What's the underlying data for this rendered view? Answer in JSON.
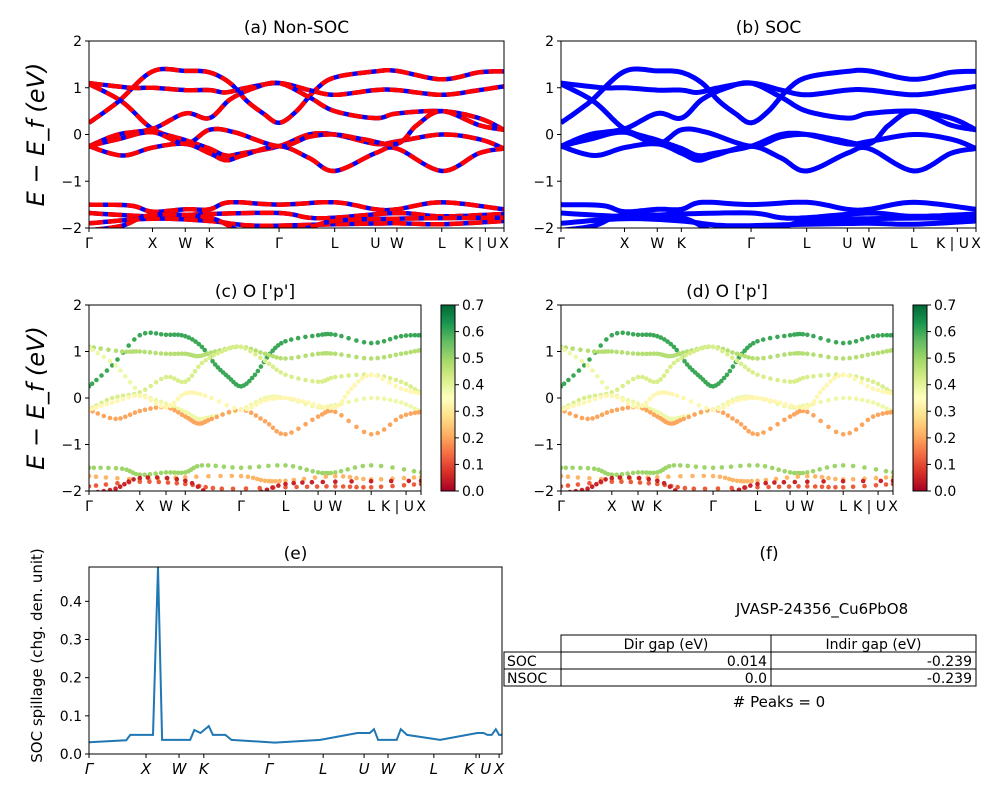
{
  "chart_data": [
    {
      "id": "a",
      "type": "line",
      "title": "(a) Non-SOC",
      "ylabel": "E − E_f (eV)",
      "ylim": [
        -2,
        2
      ],
      "yticks": [
        2,
        1,
        0,
        -1,
        -2
      ],
      "style": "dashed-red-blue",
      "colors": {
        "primary": "#ff0000",
        "secondary": "#0000ff"
      }
    },
    {
      "id": "b",
      "type": "line",
      "title": "(b) SOC",
      "ylim": [
        -2,
        2
      ],
      "yticks": [
        2,
        1,
        0,
        -1,
        -2
      ],
      "style": "solid-blue",
      "colors": {
        "primary": "#0000ff"
      }
    },
    {
      "id": "c",
      "type": "scatter",
      "title": "(c)  O ['p']",
      "ylabel": "E − E_f (eV)",
      "ylim": [
        -2,
        2
      ],
      "yticks": [
        2,
        1,
        0,
        -1,
        -2
      ],
      "colorbar": {
        "cmap": "RdYlGn",
        "range": [
          0,
          0.7
        ],
        "ticks": [
          "0.0",
          "0.1",
          "0.2",
          "0.3",
          "0.4",
          "0.5",
          "0.6",
          "0.7"
        ]
      }
    },
    {
      "id": "d",
      "type": "scatter",
      "title": "(d) O ['p']",
      "ylim": [
        -2,
        2
      ],
      "yticks": [
        2,
        1,
        0,
        -1,
        -2
      ],
      "colorbar": {
        "cmap": "RdYlGn",
        "range": [
          0,
          0.7
        ],
        "ticks": [
          "0.0",
          "0.1",
          "0.2",
          "0.3",
          "0.4",
          "0.5",
          "0.6",
          "0.7"
        ]
      }
    },
    {
      "id": "e",
      "type": "line",
      "title": "(e)",
      "ylabel": "SOC spillage (chg. den. unit)",
      "ylim": [
        0,
        0.49
      ],
      "yticks": [
        "0.0",
        "0.1",
        "0.2",
        "0.3",
        "0.4"
      ],
      "color": "#1f77b4",
      "kpath_labels": [
        "Γ",
        "X",
        "W",
        "K",
        "Γ",
        "L",
        "U",
        "W",
        "L",
        "K",
        "U",
        "X"
      ],
      "kpath_positions": [
        0,
        0.138,
        0.218,
        0.278,
        0.436,
        0.567,
        0.666,
        0.724,
        0.835,
        0.937,
        0.945,
        0.993
      ],
      "x": [
        0,
        0.09,
        0.1,
        0.155,
        0.167,
        0.177,
        0.245,
        0.255,
        0.27,
        0.29,
        0.3,
        0.33,
        0.345,
        0.45,
        0.56,
        0.65,
        0.68,
        0.69,
        0.7,
        0.745,
        0.755,
        0.77,
        0.85,
        0.94,
        0.955,
        0.965,
        0.975,
        0.985,
        0.993,
        1.0
      ],
      "y": [
        0.031,
        0.036,
        0.05,
        0.05,
        0.49,
        0.037,
        0.037,
        0.063,
        0.055,
        0.073,
        0.05,
        0.05,
        0.037,
        0.03,
        0.037,
        0.055,
        0.055,
        0.065,
        0.037,
        0.037,
        0.065,
        0.05,
        0.037,
        0.055,
        0.055,
        0.05,
        0.05,
        0.065,
        0.05,
        0.05
      ]
    },
    {
      "id": "f",
      "type": "table",
      "title": "(f)",
      "material": "JVASP-24356_Cu6PbO8",
      "columns": [
        "Dir gap (eV)",
        "Indir gap (eV)"
      ],
      "rows": [
        {
          "label": "SOC",
          "values": [
            "0.014",
            "-0.239"
          ]
        },
        {
          "label": "NSOC",
          "values": [
            "0.0",
            "-0.239"
          ]
        }
      ],
      "footer": "# Peaks = 0"
    }
  ],
  "kpath": {
    "labels": [
      "Γ",
      "X",
      "W",
      "K",
      "Γ",
      "L",
      "U",
      "W",
      "L",
      "K | U",
      "X"
    ],
    "positions": [
      0,
      0.153,
      0.232,
      0.29,
      0.458,
      0.592,
      0.69,
      0.742,
      0.85,
      0.955,
      1.0
    ]
  },
  "bands": [
    {
      "w": 0.6,
      "pts": [
        [
          0,
          0.25
        ],
        [
          0.07,
          0.7
        ],
        [
          0.153,
          1.35
        ],
        [
          0.232,
          1.36
        ],
        [
          0.29,
          1.33
        ],
        [
          0.34,
          1.1
        ],
        [
          0.38,
          0.72
        ],
        [
          0.42,
          0.45
        ],
        [
          0.458,
          0.25
        ],
        [
          0.5,
          0.5
        ],
        [
          0.545,
          0.95
        ],
        [
          0.592,
          1.22
        ],
        [
          0.69,
          1.35
        ],
        [
          0.742,
          1.36
        ],
        [
          0.85,
          1.18
        ],
        [
          0.94,
          1.33
        ],
        [
          1,
          1.35
        ]
      ]
    },
    {
      "w": 0.47,
      "pts": [
        [
          0,
          1.1
        ],
        [
          0.1,
          1.0
        ],
        [
          0.153,
          1.0
        ],
        [
          0.232,
          0.95
        ],
        [
          0.29,
          0.95
        ],
        [
          0.33,
          0.9
        ],
        [
          0.38,
          1.0
        ],
        [
          0.458,
          1.1
        ],
        [
          0.53,
          0.95
        ],
        [
          0.592,
          0.85
        ],
        [
          0.69,
          0.95
        ],
        [
          0.742,
          0.95
        ],
        [
          0.85,
          0.85
        ],
        [
          0.94,
          0.95
        ],
        [
          1,
          1.03
        ]
      ]
    },
    {
      "w": 0.38,
      "pts": [
        [
          0,
          1.08
        ],
        [
          0.08,
          0.7
        ],
        [
          0.153,
          0.12
        ],
        [
          0.232,
          -0.12
        ],
        [
          0.29,
          -0.3
        ],
        [
          0.33,
          -0.45
        ],
        [
          0.37,
          -0.4
        ],
        [
          0.458,
          -0.25
        ],
        [
          0.53,
          0.0
        ],
        [
          0.592,
          0.0
        ],
        [
          0.69,
          -0.2
        ],
        [
          0.742,
          -0.15
        ],
        [
          0.85,
          0.0
        ],
        [
          0.94,
          -0.1
        ],
        [
          1,
          -0.3
        ]
      ]
    },
    {
      "w": 0.42,
      "pts": [
        [
          0,
          -0.25
        ],
        [
          0.07,
          0.0
        ],
        [
          0.153,
          0.12
        ],
        [
          0.232,
          0.45
        ],
        [
          0.29,
          0.35
        ],
        [
          0.34,
          0.75
        ],
        [
          0.4,
          1.0
        ],
        [
          0.458,
          1.1
        ],
        [
          0.53,
          0.8
        ],
        [
          0.592,
          0.5
        ],
        [
          0.69,
          0.35
        ],
        [
          0.742,
          0.45
        ],
        [
          0.85,
          0.5
        ],
        [
          0.94,
          0.35
        ],
        [
          1,
          0.1
        ]
      ]
    },
    {
      "w": 0.2,
      "pts": [
        [
          0,
          -0.25
        ],
        [
          0.08,
          -0.45
        ],
        [
          0.153,
          -0.28
        ],
        [
          0.232,
          -0.2
        ],
        [
          0.29,
          -0.4
        ],
        [
          0.33,
          -0.55
        ],
        [
          0.37,
          -0.45
        ],
        [
          0.458,
          -0.25
        ],
        [
          0.53,
          -0.5
        ],
        [
          0.592,
          -0.78
        ],
        [
          0.69,
          -0.4
        ],
        [
          0.742,
          -0.3
        ],
        [
          0.85,
          -0.78
        ],
        [
          0.94,
          -0.4
        ],
        [
          1,
          -0.3
        ]
      ]
    },
    {
      "w": 0.33,
      "pts": [
        [
          0,
          -0.25
        ],
        [
          0.07,
          -0.1
        ],
        [
          0.153,
          0.05
        ],
        [
          0.232,
          -0.2
        ],
        [
          0.29,
          0.1
        ],
        [
          0.35,
          0.05
        ],
        [
          0.458,
          -0.25
        ],
        [
          0.53,
          -0.05
        ],
        [
          0.592,
          0.0
        ],
        [
          0.66,
          -0.1
        ],
        [
          0.742,
          -0.2
        ],
        [
          0.79,
          0.2
        ],
        [
          0.85,
          0.5
        ],
        [
          0.94,
          0.2
        ],
        [
          1,
          0.1
        ]
      ]
    },
    {
      "w": 0.5,
      "pts": [
        [
          0,
          -1.5
        ],
        [
          0.1,
          -1.52
        ],
        [
          0.153,
          -1.65
        ],
        [
          0.232,
          -1.6
        ],
        [
          0.29,
          -1.6
        ],
        [
          0.34,
          -1.45
        ],
        [
          0.458,
          -1.5
        ],
        [
          0.592,
          -1.45
        ],
        [
          0.69,
          -1.6
        ],
        [
          0.742,
          -1.6
        ],
        [
          0.85,
          -1.45
        ],
        [
          1,
          -1.6
        ]
      ]
    },
    {
      "w": 0.22,
      "pts": [
        [
          0,
          -1.68
        ],
        [
          0.153,
          -1.75
        ],
        [
          0.29,
          -1.7
        ],
        [
          0.458,
          -1.68
        ],
        [
          0.53,
          -1.78
        ],
        [
          0.592,
          -1.78
        ],
        [
          0.742,
          -1.68
        ],
        [
          0.85,
          -1.75
        ],
        [
          1,
          -1.7
        ]
      ]
    },
    {
      "w": 0.12,
      "pts": [
        [
          0,
          -1.9
        ],
        [
          0.153,
          -1.8
        ],
        [
          0.29,
          -1.85
        ],
        [
          0.4,
          -1.95
        ],
        [
          0.592,
          -1.92
        ],
        [
          0.742,
          -1.9
        ],
        [
          0.85,
          -1.92
        ],
        [
          1,
          -1.85
        ]
      ]
    },
    {
      "w": 0.05,
      "pts": [
        [
          0,
          -2.05
        ],
        [
          0.08,
          -1.95
        ],
        [
          0.153,
          -1.72
        ],
        [
          0.29,
          -1.78
        ],
        [
          0.38,
          -2.1
        ],
        [
          0.5,
          -2.05
        ],
        [
          0.592,
          -1.85
        ],
        [
          0.742,
          -1.8
        ],
        [
          1,
          -1.78
        ]
      ]
    }
  ]
}
